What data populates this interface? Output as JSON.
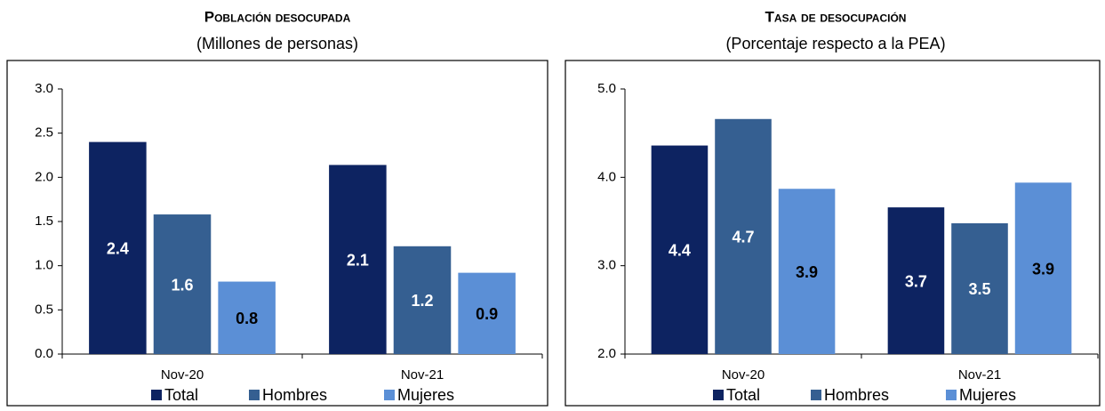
{
  "chart_data": [
    {
      "type": "bar",
      "title": "Población desocupada",
      "subtitle": "(Millones de personas)",
      "categories": [
        "Nov-20",
        "Nov-21"
      ],
      "series": [
        {
          "name": "Total",
          "color": "#0d2361",
          "values": [
            2.4,
            2.14
          ],
          "value_labels": [
            "2.4",
            "2.1"
          ],
          "label_color": "#ffffff"
        },
        {
          "name": "Hombres",
          "color": "#355f91",
          "values": [
            1.58,
            1.22
          ],
          "value_labels": [
            "1.6",
            "1.2"
          ],
          "label_color": "#ffffff"
        },
        {
          "name": "Mujeres",
          "color": "#5b8fd6",
          "values": [
            0.82,
            0.92
          ],
          "value_labels": [
            "0.8",
            "0.9"
          ],
          "label_color": "#000000"
        }
      ],
      "ylim": [
        0,
        3
      ],
      "yticks": [
        {
          "value": 0,
          "label": "0.0"
        },
        0.5,
        {
          "value": 1,
          "label": "1.0"
        },
        1.5,
        {
          "value": 2,
          "label": "2.0"
        },
        2.5,
        {
          "value": 3,
          "label": "3.0"
        }
      ]
    },
    {
      "type": "bar",
      "title": "Tasa de desocupación",
      "subtitle": "(Porcentaje respecto a la PEA)",
      "categories": [
        "Nov-20",
        "Nov-21"
      ],
      "series": [
        {
          "name": "Total",
          "color": "#0d2361",
          "values": [
            4.36,
            3.66
          ],
          "value_labels": [
            "4.4",
            "3.7"
          ],
          "label_color": "#ffffff"
        },
        {
          "name": "Hombres",
          "color": "#355f91",
          "values": [
            4.66,
            3.48
          ],
          "value_labels": [
            "4.7",
            "3.5"
          ],
          "label_color": "#ffffff"
        },
        {
          "name": "Mujeres",
          "color": "#5b8fd6",
          "values": [
            3.87,
            3.94
          ],
          "value_labels": [
            "3.9",
            "3.9"
          ],
          "label_color": "#000000"
        }
      ],
      "ylim": [
        2,
        5
      ],
      "yticks": [
        {
          "value": 2,
          "label": "2.0"
        },
        {
          "value": 3,
          "label": "3.0"
        },
        {
          "value": 4,
          "label": "4.0"
        },
        {
          "value": 5,
          "label": "5.0"
        }
      ]
    }
  ]
}
